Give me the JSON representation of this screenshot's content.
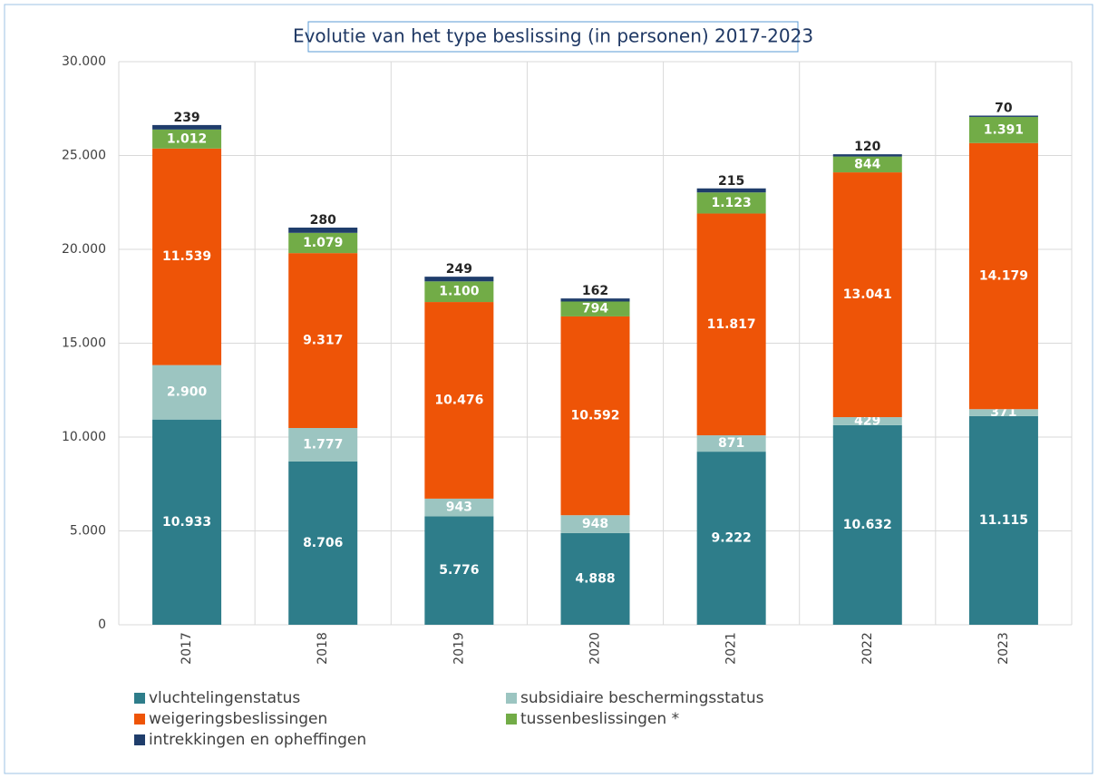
{
  "chart_data": {
    "type": "bar",
    "stacked": true,
    "title": "Evolutie van het type beslissing (in personen) 2017-2023",
    "categories": [
      "2017",
      "2018",
      "2019",
      "2020",
      "2021",
      "2022",
      "2023"
    ],
    "series": [
      {
        "name": "vluchtelingenstatus",
        "color": "#2e7d8a",
        "values": [
          10933,
          8706,
          5776,
          4888,
          9222,
          10632,
          11115
        ],
        "value_labels": [
          "10.933",
          "8.706",
          "5.776",
          "4.888",
          "9.222",
          "10.632",
          "11.115"
        ]
      },
      {
        "name": "subsidiaire beschermingsstatus",
        "color": "#9cc5c1",
        "values": [
          2900,
          1777,
          943,
          948,
          871,
          429,
          371
        ],
        "value_labels": [
          "2.900",
          "1.777",
          "943",
          "948",
          "871",
          "429",
          "371"
        ]
      },
      {
        "name": "weigeringsbeslissingen",
        "color": "#ee5407",
        "values": [
          11539,
          9317,
          10476,
          10592,
          11817,
          13041,
          14179
        ],
        "value_labels": [
          "11.539",
          "9.317",
          "10.476",
          "10.592",
          "11.817",
          "13.041",
          "14.179"
        ]
      },
      {
        "name": "tussenbeslissingen *",
        "color": "#72ac47",
        "values": [
          1012,
          1079,
          1100,
          794,
          1123,
          844,
          1391
        ],
        "value_labels": [
          "1.012",
          "1.079",
          "1.100",
          "794",
          "1.123",
          "844",
          "1.391"
        ]
      },
      {
        "name": "intrekkingen en opheffingen",
        "color": "#1f3d6b",
        "values": [
          239,
          280,
          249,
          162,
          215,
          120,
          70
        ]
      }
    ],
    "ylim": [
      0,
      30000
    ],
    "yticks": [
      0,
      {
        "value": 5000,
        "label": "5.000"
      },
      {
        "value": 10000,
        "label": "10.000"
      },
      {
        "value": 15000,
        "label": "15.000"
      },
      {
        "value": 20000,
        "label": "20.000"
      },
      {
        "value": 25000,
        "label": "25.000"
      },
      {
        "value": 30000,
        "label": "30.000"
      }
    ],
    "grid": true
  }
}
